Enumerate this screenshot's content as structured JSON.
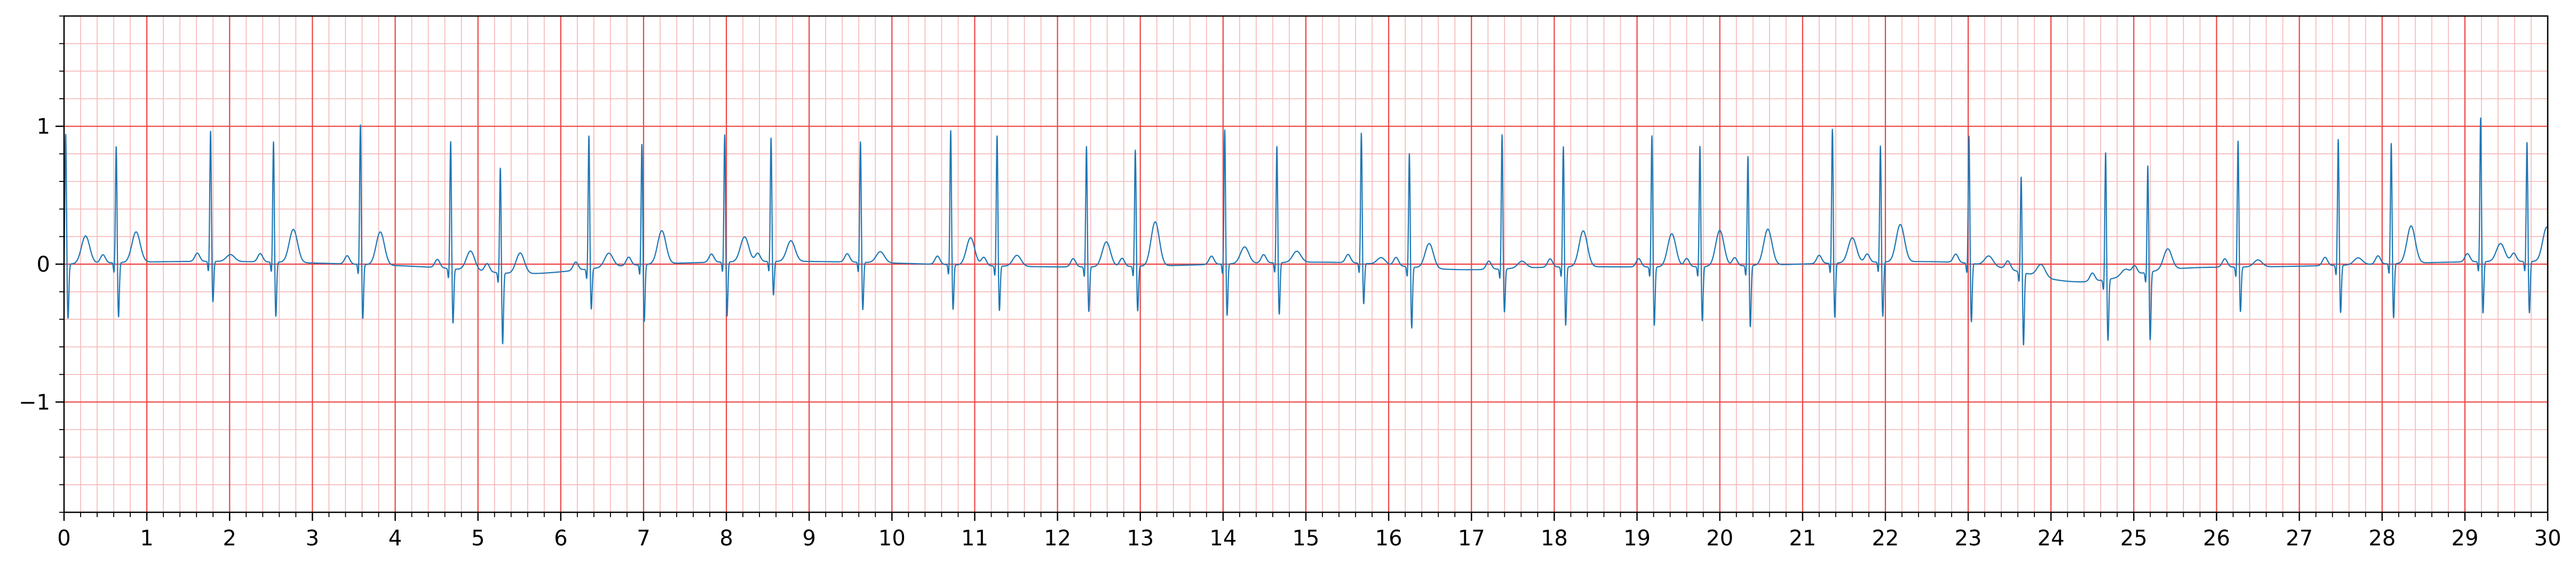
{
  "chart_data": {
    "type": "line",
    "title": "",
    "xlabel": "",
    "ylabel": "",
    "xlim": [
      0,
      30
    ],
    "ylim": [
      -1.8,
      1.8
    ],
    "x_ticks": [
      0,
      1,
      2,
      3,
      4,
      5,
      6,
      7,
      8,
      9,
      10,
      11,
      12,
      13,
      14,
      15,
      16,
      17,
      18,
      19,
      20,
      21,
      22,
      23,
      24,
      25,
      26,
      27,
      28,
      29,
      30
    ],
    "x_tick_labels": [
      "0",
      "1",
      "2",
      "3",
      "4",
      "5",
      "6",
      "7",
      "8",
      "9",
      "10",
      "11",
      "12",
      "13",
      "14",
      "15",
      "16",
      "17",
      "18",
      "19",
      "20",
      "21",
      "22",
      "23",
      "24",
      "25",
      "26",
      "27",
      "28",
      "29",
      "30"
    ],
    "y_ticks": [
      -1,
      0,
      1
    ],
    "y_tick_labels": [
      "−1",
      "0",
      "1"
    ],
    "grid": {
      "major": true,
      "minor": true,
      "major_color": "#ee4444",
      "minor_color": "#f7b5b5",
      "major_step_x": 1,
      "minor_step_x": 0.2,
      "major_step_y": 1,
      "minor_step_y": 0.2
    },
    "series": [
      {
        "color": "#1f77b4",
        "beats": [
          {
            "t": 0.02,
            "r": 0.95,
            "q": -0.4,
            "tw": 0.2
          },
          {
            "t": 0.63,
            "r": 0.85,
            "q": -0.4,
            "tw": 0.22
          },
          {
            "t": 1.77,
            "r": 0.95,
            "q": -0.3,
            "tw": 0.05
          },
          {
            "t": 2.53,
            "r": 0.88,
            "q": -0.4,
            "tw": 0.24
          },
          {
            "t": 3.58,
            "r": 1.02,
            "q": -0.4,
            "tw": 0.24
          },
          {
            "t": 4.67,
            "r": 0.93,
            "q": -0.4,
            "tw": 0.14
          },
          {
            "t": 5.27,
            "r": 0.77,
            "q": -0.52,
            "tw": 0.15
          },
          {
            "t": 6.34,
            "r": 0.97,
            "q": -0.3,
            "tw": 0.1
          },
          {
            "t": 6.98,
            "r": 0.88,
            "q": -0.42,
            "tw": 0.24
          },
          {
            "t": 7.98,
            "r": 0.93,
            "q": -0.4,
            "tw": 0.18
          },
          {
            "t": 8.54,
            "r": 0.9,
            "q": -0.25,
            "tw": 0.15
          },
          {
            "t": 9.62,
            "r": 0.88,
            "q": -0.35,
            "tw": 0.08
          },
          {
            "t": 10.71,
            "r": 0.98,
            "q": -0.33,
            "tw": 0.2
          },
          {
            "t": 11.27,
            "r": 0.95,
            "q": -0.33,
            "tw": 0.08
          },
          {
            "t": 12.35,
            "r": 0.88,
            "q": -0.33,
            "tw": 0.18
          },
          {
            "t": 12.94,
            "r": 0.85,
            "q": -0.33,
            "tw": 0.32
          },
          {
            "t": 14.02,
            "r": 0.98,
            "q": -0.38,
            "tw": 0.12
          },
          {
            "t": 14.65,
            "r": 0.85,
            "q": -0.38,
            "tw": 0.08
          },
          {
            "t": 15.67,
            "r": 0.95,
            "q": -0.3,
            "tw": 0.05
          },
          {
            "t": 16.25,
            "r": 0.83,
            "q": -0.45,
            "tw": 0.18
          },
          {
            "t": 17.37,
            "r": 0.98,
            "q": -0.32,
            "tw": 0.05
          },
          {
            "t": 18.11,
            "r": 0.88,
            "q": -0.43,
            "tw": 0.26
          },
          {
            "t": 19.18,
            "r": 0.96,
            "q": -0.43,
            "tw": 0.24
          },
          {
            "t": 19.76,
            "r": 0.88,
            "q": -0.4,
            "tw": 0.26
          },
          {
            "t": 20.34,
            "r": 0.8,
            "q": -0.45,
            "tw": 0.26
          },
          {
            "t": 21.36,
            "r": 0.98,
            "q": -0.4,
            "tw": 0.18
          },
          {
            "t": 21.94,
            "r": 0.85,
            "q": -0.4,
            "tw": 0.27
          },
          {
            "t": 23.01,
            "r": 0.93,
            "q": -0.43,
            "tw": 0.07
          },
          {
            "t": 23.64,
            "r": 0.7,
            "q": -0.53,
            "tw": 0.09
          },
          {
            "t": 24.66,
            "r": 0.93,
            "q": -0.45,
            "tw": 0.05
          },
          {
            "t": 25.17,
            "r": 0.78,
            "q": -0.5,
            "tw": 0.15
          },
          {
            "t": 26.26,
            "r": 0.92,
            "q": -0.33,
            "tw": 0.05
          },
          {
            "t": 27.47,
            "r": 0.92,
            "q": -0.35,
            "tw": 0.05
          },
          {
            "t": 28.11,
            "r": 0.88,
            "q": -0.4,
            "tw": 0.27
          },
          {
            "t": 29.19,
            "r": 1.05,
            "q": -0.38,
            "tw": 0.13
          },
          {
            "t": 29.75,
            "r": 0.87,
            "q": -0.38,
            "tw": 0.25
          }
        ]
      }
    ]
  }
}
